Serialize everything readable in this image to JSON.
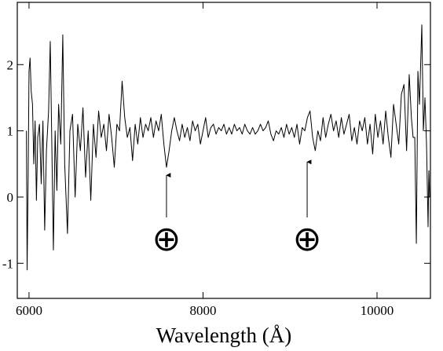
{
  "chart_data": {
    "type": "line",
    "x_label": "Wavelength (Å)",
    "color": "#000000",
    "xlim": [
      5865,
      10614
    ],
    "ylim": [
      -1.53,
      2.94
    ],
    "xticks": [
      6000,
      8000,
      10000
    ],
    "yticks": [
      -1,
      0,
      1,
      2
    ],
    "x": [
      5970,
      5978,
      5990,
      6000,
      6012,
      6025,
      6040,
      6055,
      6070,
      6085,
      6100,
      6120,
      6140,
      6160,
      6180,
      6200,
      6225,
      6244,
      6262,
      6280,
      6300,
      6320,
      6340,
      6365,
      6388,
      6410,
      6442,
      6470,
      6500,
      6530,
      6560,
      6590,
      6620,
      6650,
      6680,
      6710,
      6740,
      6770,
      6800,
      6830,
      6860,
      6890,
      6920,
      6950,
      6980,
      7010,
      7040,
      7070,
      7100,
      7130,
      7160,
      7190,
      7220,
      7250,
      7280,
      7310,
      7340,
      7370,
      7400,
      7430,
      7460,
      7490,
      7520,
      7550,
      7580,
      7610,
      7640,
      7670,
      7700,
      7730,
      7760,
      7790,
      7820,
      7850,
      7880,
      7910,
      7940,
      7970,
      8000,
      8030,
      8060,
      8090,
      8120,
      8150,
      8180,
      8210,
      8240,
      8270,
      8300,
      8330,
      8360,
      8390,
      8420,
      8450,
      8480,
      8510,
      8540,
      8570,
      8600,
      8630,
      8660,
      8690,
      8720,
      8750,
      8780,
      8810,
      8840,
      8870,
      8900,
      8930,
      8960,
      8990,
      9020,
      9050,
      9080,
      9110,
      9140,
      9170,
      9200,
      9230,
      9260,
      9290,
      9320,
      9350,
      9380,
      9410,
      9440,
      9470,
      9500,
      9530,
      9560,
      9590,
      9620,
      9650,
      9680,
      9710,
      9740,
      9770,
      9800,
      9830,
      9860,
      9890,
      9920,
      9950,
      9980,
      10010,
      10040,
      10070,
      10100,
      10130,
      10160,
      10190,
      10220,
      10250,
      10280,
      10310,
      10340,
      10370,
      10395,
      10415,
      10434,
      10452,
      10470,
      10488,
      10515,
      10533,
      10551,
      10569,
      10587,
      10596,
      10605
    ],
    "values": [
      1.0,
      -1.1,
      0.3,
      1.9,
      2.1,
      1.6,
      1.4,
      0.5,
      1.15,
      -0.05,
      0.9,
      1.1,
      0.2,
      1.15,
      -0.5,
      0.7,
      1.3,
      2.35,
      0.8,
      -0.8,
      1.0,
      0.1,
      1.4,
      0.8,
      2.45,
      0.5,
      -0.55,
      1.0,
      1.25,
      0.0,
      1.1,
      0.7,
      1.35,
      0.3,
      1.0,
      -0.05,
      1.1,
      0.6,
      1.3,
      0.9,
      1.1,
      0.7,
      1.25,
      0.9,
      0.45,
      1.1,
      1.0,
      1.75,
      1.2,
      0.9,
      1.05,
      0.55,
      1.1,
      0.8,
      1.2,
      0.9,
      1.1,
      1.0,
      1.2,
      0.9,
      1.15,
      1.0,
      1.25,
      0.8,
      0.45,
      0.7,
      1.0,
      1.2,
      1.0,
      0.85,
      1.1,
      0.9,
      1.05,
      0.85,
      1.15,
      1.0,
      1.1,
      0.8,
      1.0,
      1.2,
      0.9,
      1.05,
      1.1,
      0.95,
      1.05,
      1.0,
      1.1,
      0.95,
      1.05,
      0.95,
      1.1,
      1.0,
      1.05,
      0.95,
      1.1,
      1.0,
      0.95,
      1.05,
      0.95,
      1.0,
      1.1,
      1.0,
      1.05,
      1.15,
      0.95,
      0.85,
      1.0,
      0.95,
      1.05,
      0.9,
      1.1,
      0.95,
      1.05,
      0.9,
      1.1,
      0.8,
      1.05,
      1.0,
      1.2,
      1.3,
      0.9,
      0.7,
      1.0,
      0.85,
      1.2,
      0.9,
      1.1,
      1.25,
      1.0,
      1.15,
      0.9,
      1.2,
      0.95,
      1.1,
      1.25,
      0.85,
      1.05,
      0.8,
      1.15,
      1.0,
      1.2,
      0.8,
      1.1,
      0.65,
      1.25,
      0.9,
      1.15,
      0.8,
      1.3,
      0.9,
      0.6,
      1.4,
      1.1,
      0.8,
      1.55,
      1.7,
      0.7,
      1.85,
      1.2,
      0.9,
      0.9,
      -0.7,
      1.9,
      1.4,
      2.6,
      1.0,
      1.5,
      0.8,
      -0.45,
      0.4,
      0.0
    ],
    "annotations": [
      {
        "text": "⊕",
        "x": 7580,
        "y": 0.33,
        "text_y": -0.64
      },
      {
        "text": "⊕",
        "x": 9197,
        "y": 0.53,
        "text_y": -0.64
      }
    ]
  }
}
